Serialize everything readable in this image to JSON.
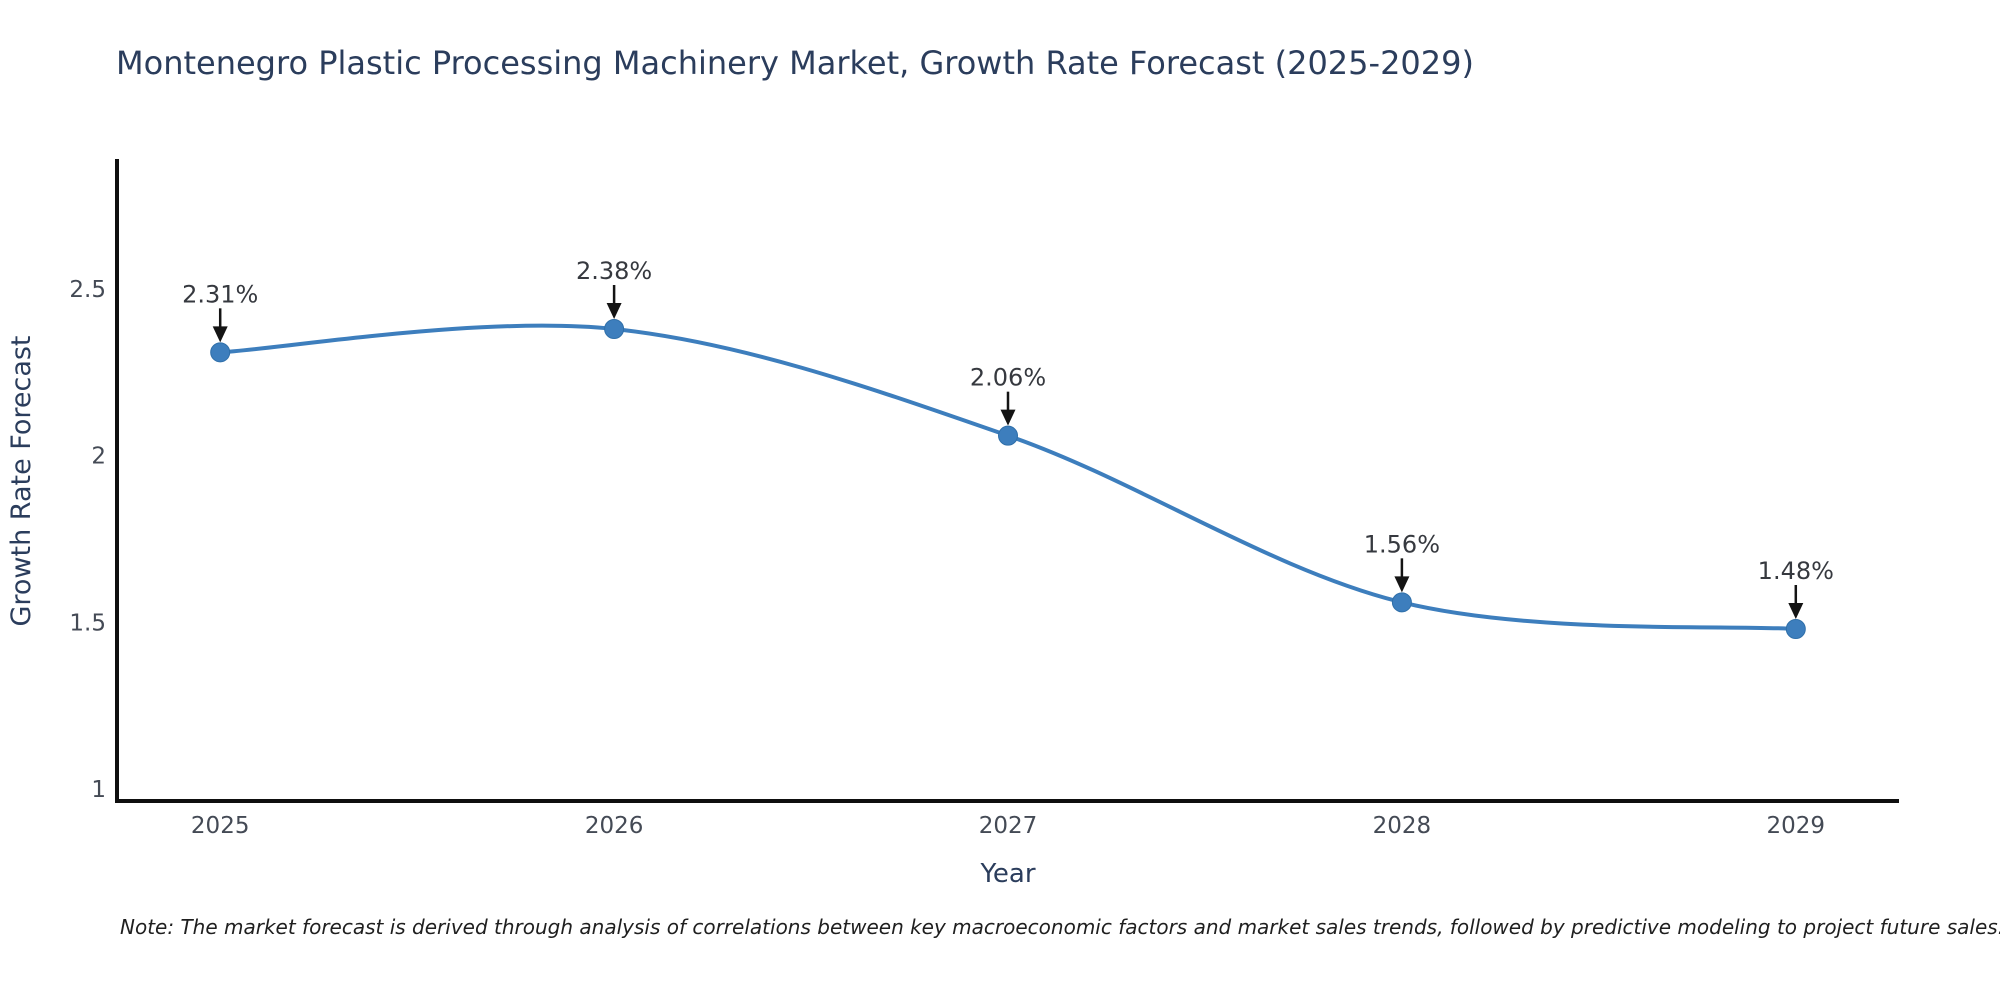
{
  "chart_data": {
    "type": "line",
    "title": "Montenegro Plastic Processing Machinery Market, Growth Rate Forecast (2025-2029)",
    "xlabel": "Year",
    "ylabel": "Growth Rate Forecast",
    "line_shape": "spline",
    "grid": false,
    "legend_position": "none",
    "x": [
      2025,
      2026,
      2027,
      2028,
      2029
    ],
    "y": [
      2.31,
      2.38,
      2.06,
      1.56,
      1.48
    ],
    "point_labels": [
      "2.31%",
      "2.38%",
      "2.06%",
      "1.56%",
      "1.48%"
    ],
    "x_tick_labels": [
      "2025",
      "2026",
      "2027",
      "2028",
      "2029"
    ],
    "y_tick_values": [
      1,
      1.5,
      2,
      2.5
    ],
    "y_tick_labels": [
      "1",
      "1.5",
      "2",
      "2.5"
    ],
    "x_range": [
      2024.738,
      2029.262
    ],
    "y_range": [
      0.964,
      2.89
    ],
    "colors": {
      "line": "#3d7ebd",
      "marker": "#3d7ebd",
      "marker_edge": "#2f6fa9",
      "axis_line": "#0f0f0f",
      "tick_label": "#444a55",
      "title": "#2b3d5c",
      "axis_title": "#2b3d5c",
      "annotation_text": "#36393f",
      "annotation_arrow": "#141414",
      "note_text": "#1f1f1f"
    }
  },
  "note": {
    "text": "Note: The market forecast is derived through analysis of correlations between key macroeconomic factors and market sales trends, followed by predictive modeling to project future sales."
  }
}
